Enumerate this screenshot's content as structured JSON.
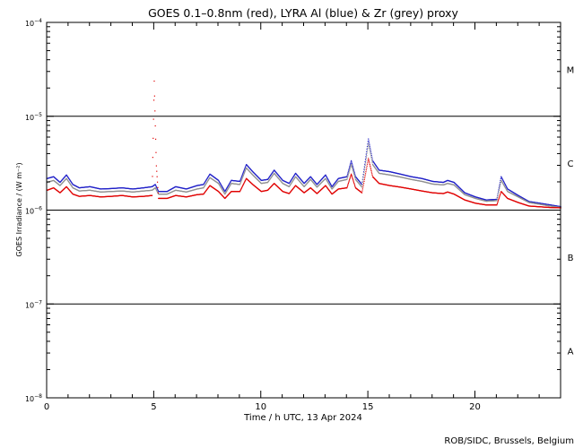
{
  "chart_data": {
    "type": "line",
    "title": "GOES 0.1–0.8nm (red), LYRA Al (blue) & Zr (grey) proxy",
    "xlabel": "Time / h UTC, 13 Apr 2024",
    "ylabel": "GOES Irradiance / (W m⁻²)",
    "credit": "ROB/SIDC, Brussels, Belgium",
    "xlim": [
      0,
      24
    ],
    "ylim": [
      1e-08,
      0.0001
    ],
    "yscale": "log",
    "x_ticks": [
      {
        "value": 0,
        "label": "0"
      },
      {
        "value": 5,
        "label": "5"
      },
      {
        "value": 10,
        "label": "10"
      },
      {
        "value": 15,
        "label": "15"
      },
      {
        "value": 20,
        "label": "20"
      }
    ],
    "y_ticks": [
      {
        "value": 1e-08,
        "base": "10",
        "exp": "−8"
      },
      {
        "value": 1e-07,
        "base": "10",
        "exp": "−7"
      },
      {
        "value": 1e-06,
        "base": "10",
        "exp": "−6"
      },
      {
        "value": 1e-05,
        "base": "10",
        "exp": "−5"
      },
      {
        "value": 0.0001,
        "base": "10",
        "exp": "−4"
      }
    ],
    "flare_classes": [
      {
        "label": "M",
        "value": 3.16e-05
      },
      {
        "label": "C",
        "value": 3.16e-06
      },
      {
        "label": "B",
        "value": 3.16e-07
      },
      {
        "label": "A",
        "value": 3.16e-08
      }
    ],
    "class_lines": [
      1e-05,
      1e-06,
      1e-07
    ],
    "series": [
      {
        "name": "LYRA Al",
        "color": "#2020c8",
        "x": [
          0,
          0.3,
          0.6,
          0.9,
          1.2,
          1.5,
          2,
          2.5,
          3,
          3.5,
          4,
          4.5,
          4.9,
          5.05,
          5.2,
          5.6,
          6,
          6.5,
          7,
          7.3,
          7.6,
          8,
          8.3,
          8.6,
          9,
          9.3,
          9.6,
          10,
          10.3,
          10.6,
          11,
          11.3,
          11.6,
          12,
          12.3,
          12.6,
          13,
          13.3,
          13.6,
          14,
          14.2,
          14.4,
          14.7,
          15,
          15.2,
          15.5,
          16,
          16.5,
          17,
          17.5,
          18,
          18.5,
          18.7,
          19,
          19.5,
          20,
          20.5,
          21,
          21.2,
          21.5,
          22,
          22.5,
          23,
          23.5,
          24
        ],
        "values": [
          2.2e-06,
          2.3e-06,
          2e-06,
          2.4e-06,
          1.9e-06,
          1.75e-06,
          1.8e-06,
          1.7e-06,
          1.72e-06,
          1.75e-06,
          1.7e-06,
          1.75e-06,
          1.8e-06,
          1.9e-06,
          1.6e-06,
          1.6e-06,
          1.8e-06,
          1.7e-06,
          1.85e-06,
          1.9e-06,
          2.45e-06,
          2.1e-06,
          1.6e-06,
          2.1e-06,
          2.05e-06,
          3.1e-06,
          2.6e-06,
          2.1e-06,
          2.15e-06,
          2.7e-06,
          2.1e-06,
          1.95e-06,
          2.5e-06,
          1.95e-06,
          2.3e-06,
          1.9e-06,
          2.4e-06,
          1.8e-06,
          2.2e-06,
          2.3e-06,
          3.4e-06,
          2.3e-06,
          1.9e-06,
          5.8e-06,
          3.4e-06,
          2.7e-06,
          2.6e-06,
          2.45e-06,
          2.3e-06,
          2.2e-06,
          2.05e-06,
          2e-06,
          2.1e-06,
          2e-06,
          1.55e-06,
          1.4e-06,
          1.3e-06,
          1.32e-06,
          2.3e-06,
          1.7e-06,
          1.45e-06,
          1.25e-06,
          1.2e-06,
          1.15e-06,
          1.1e-06
        ]
      },
      {
        "name": "Zr",
        "color": "#909090",
        "x": [
          0,
          0.3,
          0.6,
          0.9,
          1.2,
          1.5,
          2,
          2.5,
          3,
          3.5,
          4,
          4.5,
          4.9,
          5.05,
          5.2,
          5.6,
          6,
          6.5,
          7,
          7.3,
          7.6,
          8,
          8.3,
          8.6,
          9,
          9.3,
          9.6,
          10,
          10.3,
          10.6,
          11,
          11.3,
          11.6,
          12,
          12.3,
          12.6,
          13,
          13.3,
          13.6,
          14,
          14.2,
          14.4,
          14.7,
          15,
          15.2,
          15.5,
          16,
          16.5,
          17,
          17.5,
          18,
          18.5,
          18.7,
          19,
          19.5,
          20,
          20.5,
          21,
          21.2,
          21.5,
          22,
          22.5,
          23,
          23.5,
          24
        ],
        "values": [
          2e-06,
          2.1e-06,
          1.85e-06,
          2.2e-06,
          1.75e-06,
          1.62e-06,
          1.65e-06,
          1.58e-06,
          1.6e-06,
          1.62e-06,
          1.58e-06,
          1.62e-06,
          1.65e-06,
          1.75e-06,
          1.5e-06,
          1.5e-06,
          1.65e-06,
          1.58e-06,
          1.7e-06,
          1.75e-06,
          2.25e-06,
          1.95e-06,
          1.5e-06,
          1.95e-06,
          1.9e-06,
          2.85e-06,
          2.4e-06,
          1.95e-06,
          2e-06,
          2.5e-06,
          1.95e-06,
          1.8e-06,
          2.3e-06,
          1.8e-06,
          2.15e-06,
          1.78e-06,
          2.2e-06,
          1.7e-06,
          2.05e-06,
          2.15e-06,
          3.1e-06,
          2.15e-06,
          1.78e-06,
          5.2e-06,
          3.1e-06,
          2.5e-06,
          2.4e-06,
          2.28e-06,
          2.15e-06,
          2.05e-06,
          1.92e-06,
          1.88e-06,
          1.95e-06,
          1.88e-06,
          1.48e-06,
          1.35e-06,
          1.26e-06,
          1.28e-06,
          2.1e-06,
          1.6e-06,
          1.4e-06,
          1.22e-06,
          1.17e-06,
          1.12e-06,
          1.08e-06
        ]
      },
      {
        "name": "GOES 0.1–0.8nm",
        "color": "#e00000",
        "x": [
          0,
          0.3,
          0.6,
          0.9,
          1.2,
          1.5,
          2,
          2.5,
          3,
          3.5,
          4,
          4.5,
          4.9,
          5.0,
          5.05,
          5.1,
          5.2,
          5.6,
          6,
          6.5,
          7,
          7.3,
          7.6,
          8,
          8.3,
          8.6,
          9,
          9.3,
          9.6,
          10,
          10.3,
          10.6,
          11,
          11.3,
          11.6,
          12,
          12.3,
          12.6,
          13,
          13.3,
          13.6,
          14,
          14.2,
          14.4,
          14.7,
          15,
          15.2,
          15.5,
          16,
          16.5,
          17,
          17.5,
          18,
          18.5,
          18.7,
          19,
          19.5,
          20,
          20.5,
          21,
          21.2,
          21.5,
          22,
          22.5,
          23,
          23.5,
          24
        ],
        "values": [
          1.65e-06,
          1.75e-06,
          1.55e-06,
          1.8e-06,
          1.5e-06,
          1.42e-06,
          1.45e-06,
          1.4e-06,
          1.42e-06,
          1.45e-06,
          1.4e-06,
          1.42e-06,
          1.45e-06,
          2.4e-05,
          8e-06,
          3e-06,
          1.35e-06,
          1.35e-06,
          1.45e-06,
          1.4e-06,
          1.48e-06,
          1.5e-06,
          1.85e-06,
          1.6e-06,
          1.35e-06,
          1.6e-06,
          1.6e-06,
          2.2e-06,
          1.9e-06,
          1.6e-06,
          1.65e-06,
          1.95e-06,
          1.6e-06,
          1.52e-06,
          1.85e-06,
          1.55e-06,
          1.75e-06,
          1.52e-06,
          1.85e-06,
          1.5e-06,
          1.7e-06,
          1.75e-06,
          2.45e-06,
          1.75e-06,
          1.55e-06,
          3.6e-06,
          2.3e-06,
          1.95e-06,
          1.85e-06,
          1.78e-06,
          1.7e-06,
          1.62e-06,
          1.55e-06,
          1.52e-06,
          1.58e-06,
          1.5e-06,
          1.3e-06,
          1.2e-06,
          1.15e-06,
          1.15e-06,
          1.6e-06,
          1.35e-06,
          1.22e-06,
          1.12e-06,
          1.1e-06,
          1.08e-06,
          1.07e-06
        ]
      }
    ]
  }
}
